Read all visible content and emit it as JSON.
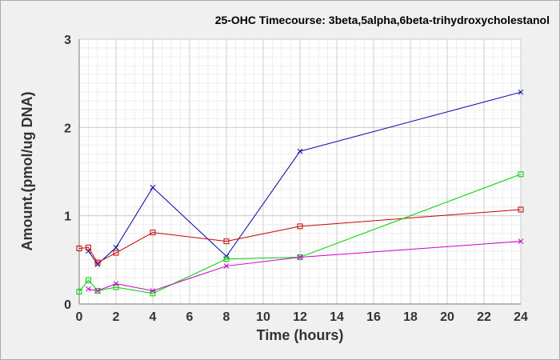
{
  "chart_data": {
    "type": "line",
    "title": "25-OHC Timecourse: 3beta,5alpha,6beta-trihydroxycholestanol",
    "xlabel": "Time (hours)",
    "ylabel": "Amount.(pmol/ug DNA)",
    "xlim": [
      0,
      24
    ],
    "ylim": [
      0,
      3
    ],
    "x_ticks": [
      0,
      2,
      4,
      6,
      8,
      10,
      12,
      14,
      16,
      18,
      20,
      22,
      24
    ],
    "y_ticks": [
      0,
      1,
      2,
      3
    ],
    "grid": true,
    "series": [
      {
        "color": "#0000aa",
        "marker": "x",
        "x": [
          0.5,
          1,
          2,
          4,
          8,
          12,
          24
        ],
        "y": [
          0.6,
          0.45,
          0.64,
          1.32,
          0.54,
          1.73,
          2.4
        ]
      },
      {
        "color": "#cc0000",
        "marker": "square",
        "x": [
          0,
          0.5,
          1,
          2,
          4,
          8,
          12,
          24
        ],
        "y": [
          0.63,
          0.64,
          0.47,
          0.58,
          0.81,
          0.71,
          0.88,
          1.07
        ]
      },
      {
        "color": "#00cc00",
        "marker": "square",
        "x": [
          0,
          0.5,
          1,
          2,
          4,
          8,
          12,
          24
        ],
        "y": [
          0.14,
          0.27,
          0.15,
          0.19,
          0.12,
          0.51,
          0.53,
          1.47
        ]
      },
      {
        "color": "#cc00cc",
        "marker": "x",
        "x": [
          0.5,
          1,
          2,
          4,
          8,
          12,
          24
        ],
        "y": [
          0.17,
          0.15,
          0.23,
          0.15,
          0.43,
          0.53,
          0.71
        ]
      }
    ]
  }
}
